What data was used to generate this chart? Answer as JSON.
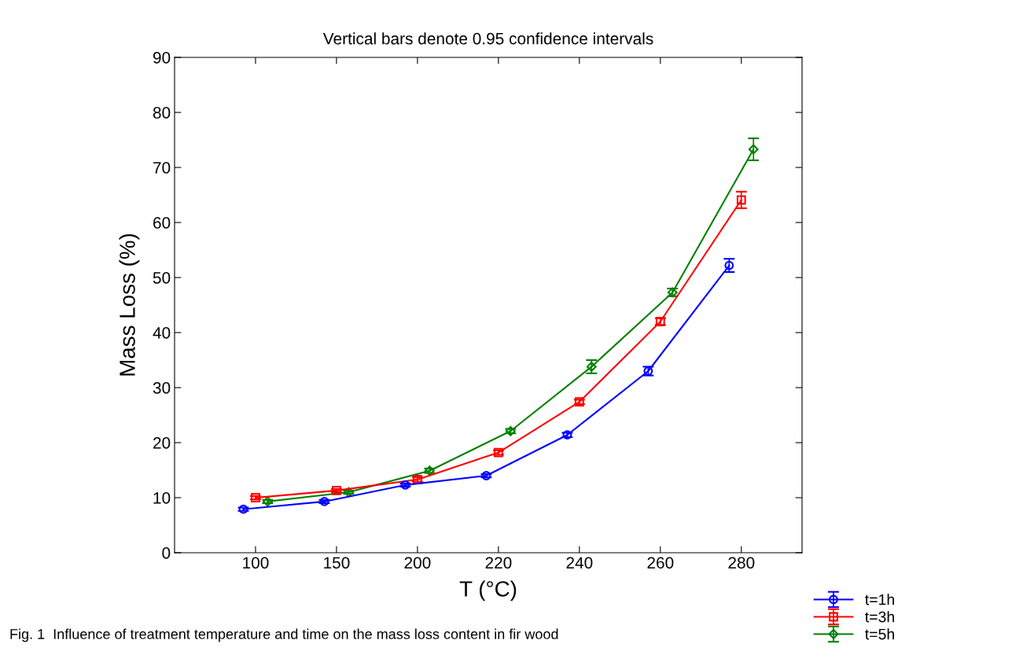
{
  "chart_data": {
    "type": "line",
    "title": "Vertical bars denote 0.95 confidence intervals",
    "xlabel": "T (°C)",
    "ylabel": "Mass Loss (%)",
    "categories": [
      "100",
      "150",
      "200",
      "220",
      "240",
      "260",
      "280"
    ],
    "series": [
      {
        "name": "t=1h",
        "color": "#0000ff",
        "marker": "circle",
        "values": [
          7.9,
          9.3,
          12.3,
          14.0,
          21.4,
          33.0,
          52.2
        ],
        "errors": [
          0.3,
          0.3,
          0.3,
          0.3,
          0.4,
          0.8,
          1.2
        ]
      },
      {
        "name": "t=3h",
        "color": "#ff0000",
        "marker": "square",
        "values": [
          10.0,
          11.3,
          13.3,
          18.2,
          27.4,
          42.0,
          64.1
        ],
        "errors": [
          0.3,
          0.3,
          0.4,
          0.4,
          0.4,
          0.6,
          1.5
        ]
      },
      {
        "name": "t=5h",
        "color": "#008000",
        "marker": "diamond",
        "values": [
          9.3,
          11.0,
          14.9,
          22.1,
          33.8,
          47.3,
          73.3
        ],
        "errors": [
          0.3,
          0.3,
          0.4,
          0.4,
          1.2,
          0.7,
          2.0
        ]
      }
    ],
    "ylim": [
      0,
      90
    ],
    "yticks": [
      0,
      10,
      20,
      30,
      40,
      50,
      60,
      70,
      80,
      90
    ],
    "grid": false,
    "legend": "bottom right",
    "line_style": "solid",
    "annotations": [
      "Fig. 1  Influence of treatment temperature and time on the mass loss content in fir wood"
    ]
  }
}
